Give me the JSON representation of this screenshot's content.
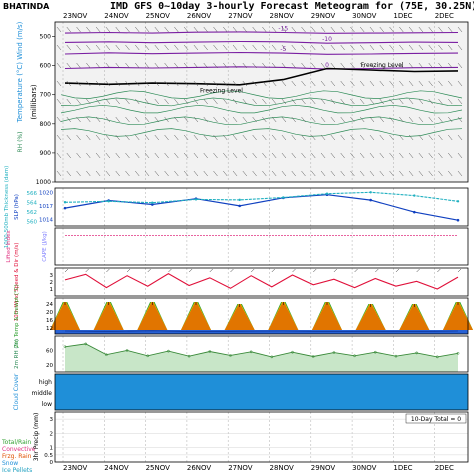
{
  "header": {
    "station": "BHATINDA",
    "title": "IMD GFS 0~10day 3-hourly Forecast Meteogram for (75E, 30.25N)"
  },
  "dates": [
    "23NOV",
    "24NOV",
    "25NOV",
    "26NOV",
    "27NOV",
    "28NOV",
    "29NOV",
    "30NOV",
    "1DEC",
    "2DEC"
  ],
  "colors": {
    "temperature_contour": "#7a1fa2",
    "rh_contour": "#2e8b57",
    "freezing_level": "#000000",
    "slp": "#1040c0",
    "thickness": "#20b0c0",
    "lifted_index": "#e03080",
    "wind_speed": "#e0103a",
    "temp_band_top": "#e07000",
    "temp_band_mid": "#f0d000",
    "temp_band_low": "#30a030",
    "dewpoint_band": "#1050d0",
    "rh_fill": "#c8e6c8",
    "cloud": "#1f8fd8"
  },
  "chart_data": [
    {
      "type": "heatmap",
      "name": "upper-air-cross-section",
      "y_label_left": "Temperature (°C) Wind (m/s)",
      "y_label_right": "(millibars)",
      "y_label_rh": "RH (%)",
      "y_ticks": [
        500,
        600,
        700,
        800,
        900,
        1000
      ],
      "ylim": [
        1000,
        450
      ],
      "temperature_isotherms": [
        {
          "label": "-15",
          "values": [
            488,
            486,
            488,
            485,
            484,
            486,
            489,
            488,
            487,
            486
          ]
        },
        {
          "label": "-10",
          "values": [
            520,
            518,
            521,
            519,
            517,
            518,
            523,
            521,
            519,
            520
          ]
        },
        {
          "label": "-5",
          "values": [
            560,
            556,
            559,
            557,
            555,
            557,
            561,
            560,
            558,
            557
          ]
        },
        {
          "label": "0",
          "values": [
            610,
            606,
            608,
            606,
            604,
            606,
            612,
            610,
            607,
            606
          ]
        }
      ],
      "freezing_level_label": "Freezing Level",
      "freezing_level": [
        660,
        664,
        660,
        662,
        666,
        648,
        610,
        615,
        620,
        618
      ],
      "rh_layers": [
        700,
        725,
        750,
        790,
        830
      ]
    },
    {
      "type": "line",
      "name": "pressure",
      "y_label_left": "SLP (hPa)",
      "y_label_right": "1000-500mb Thickness (dam)",
      "slp_ticks": [
        1014,
        1017,
        1020
      ],
      "thickness_ticks": [
        560,
        562,
        564,
        566
      ],
      "slp": [
        1016.5,
        1018.2,
        1017.3,
        1018.6,
        1017.0,
        1018.8,
        1019.5,
        1018.3,
        1015.6,
        1013.8
      ],
      "thickness": [
        564.0,
        564.2,
        563.9,
        564.6,
        564.5,
        565.0,
        565.8,
        566.1,
        565.4,
        564.2
      ]
    },
    {
      "type": "line",
      "name": "stability",
      "y_label_left": "Lifted Index",
      "y_label_right": "CAPE (J/kg)",
      "lifted_index": [
        8,
        8,
        8,
        8,
        8,
        8,
        8,
        8,
        8,
        8
      ]
    },
    {
      "type": "line",
      "name": "wind",
      "y_label": "10m Wind Speed & Dir (m/s)",
      "y_ticks": [
        1,
        2,
        3
      ],
      "ylim": [
        0,
        4
      ],
      "speed": [
        2.3,
        3.1,
        1.2,
        2.9,
        1.4,
        3.2,
        1.5,
        2.6,
        1.1,
        2.9,
        1.3,
        3.0,
        1.6,
        2.4,
        1.2,
        2.5,
        1.4,
        2.1,
        1.0,
        2.7
      ]
    },
    {
      "type": "area",
      "name": "temperature",
      "y_label": "2m Temp & Dewpt (°C)",
      "y_ticks": [
        12,
        16,
        20,
        24
      ],
      "ylim": [
        9,
        27
      ],
      "max_temp": [
        25,
        25,
        25,
        25,
        24,
        25,
        25,
        24,
        24,
        25
      ],
      "min_temp": [
        11,
        11,
        11,
        11,
        11,
        11,
        11,
        11,
        11,
        11
      ],
      "dewpoint": [
        10.5,
        10.3,
        10.6,
        10.2,
        10.4,
        10.5,
        10.3,
        10.4,
        10.2,
        10.5
      ]
    },
    {
      "type": "area",
      "name": "humidity",
      "y_label": "2m RH (%)",
      "y_ticks": [
        20,
        60
      ],
      "ylim": [
        0,
        100
      ],
      "rh": [
        70,
        78,
        48,
        60,
        45,
        58,
        44,
        57,
        46,
        56,
        42,
        55,
        43,
        54,
        45,
        55,
        44,
        53,
        42,
        52
      ]
    },
    {
      "type": "bar",
      "name": "cloud-cover",
      "y_label": "Cloud Cover",
      "levels": [
        "high",
        "middle",
        "low"
      ]
    },
    {
      "type": "bar",
      "name": "precipitation",
      "y_label": "3hr Precip (mm)",
      "y_ticks": [
        0,
        0.5,
        1,
        2,
        3
      ],
      "legend": [
        "Total/Rain",
        "Convective",
        "Frzg. Rain",
        "Snow",
        "Ice Pellets"
      ],
      "total_label": "10-Day Total = 0",
      "values": [
        0,
        0,
        0,
        0,
        0,
        0,
        0,
        0,
        0,
        0
      ]
    }
  ]
}
